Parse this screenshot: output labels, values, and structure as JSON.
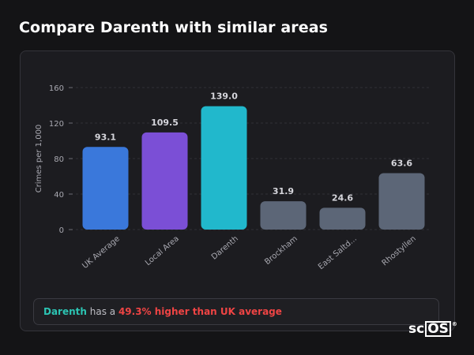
{
  "header": {
    "title": "Compare Darenth with similar areas"
  },
  "chart_data": {
    "type": "bar",
    "ylabel": "Crimes per 1,000",
    "xlabel": "",
    "ylim": [
      0,
      160
    ],
    "yticks": [
      0,
      40,
      80,
      120,
      160
    ],
    "grid": "horizontal dashed",
    "categories": [
      "UK Average",
      "Local Area",
      "Darenth",
      "Brockham",
      "East Saltd...",
      "Rhostyllen"
    ],
    "values": [
      93.1,
      109.5,
      139.0,
      31.9,
      24.6,
      63.6
    ],
    "value_labels": [
      "93.1",
      "109.5",
      "139.0",
      "31.9",
      "24.6",
      "63.6"
    ],
    "colors": [
      "#3a78db",
      "#7b4fd6",
      "#21b8cc",
      "#5c6677",
      "#5c6677",
      "#5c6677"
    ]
  },
  "callout": {
    "area": "Darenth",
    "middle": " has a ",
    "difference": "49.3% higher than UK average"
  },
  "logo": {
    "prefix": "sc",
    "boxed": "OS",
    "mark": "®"
  }
}
